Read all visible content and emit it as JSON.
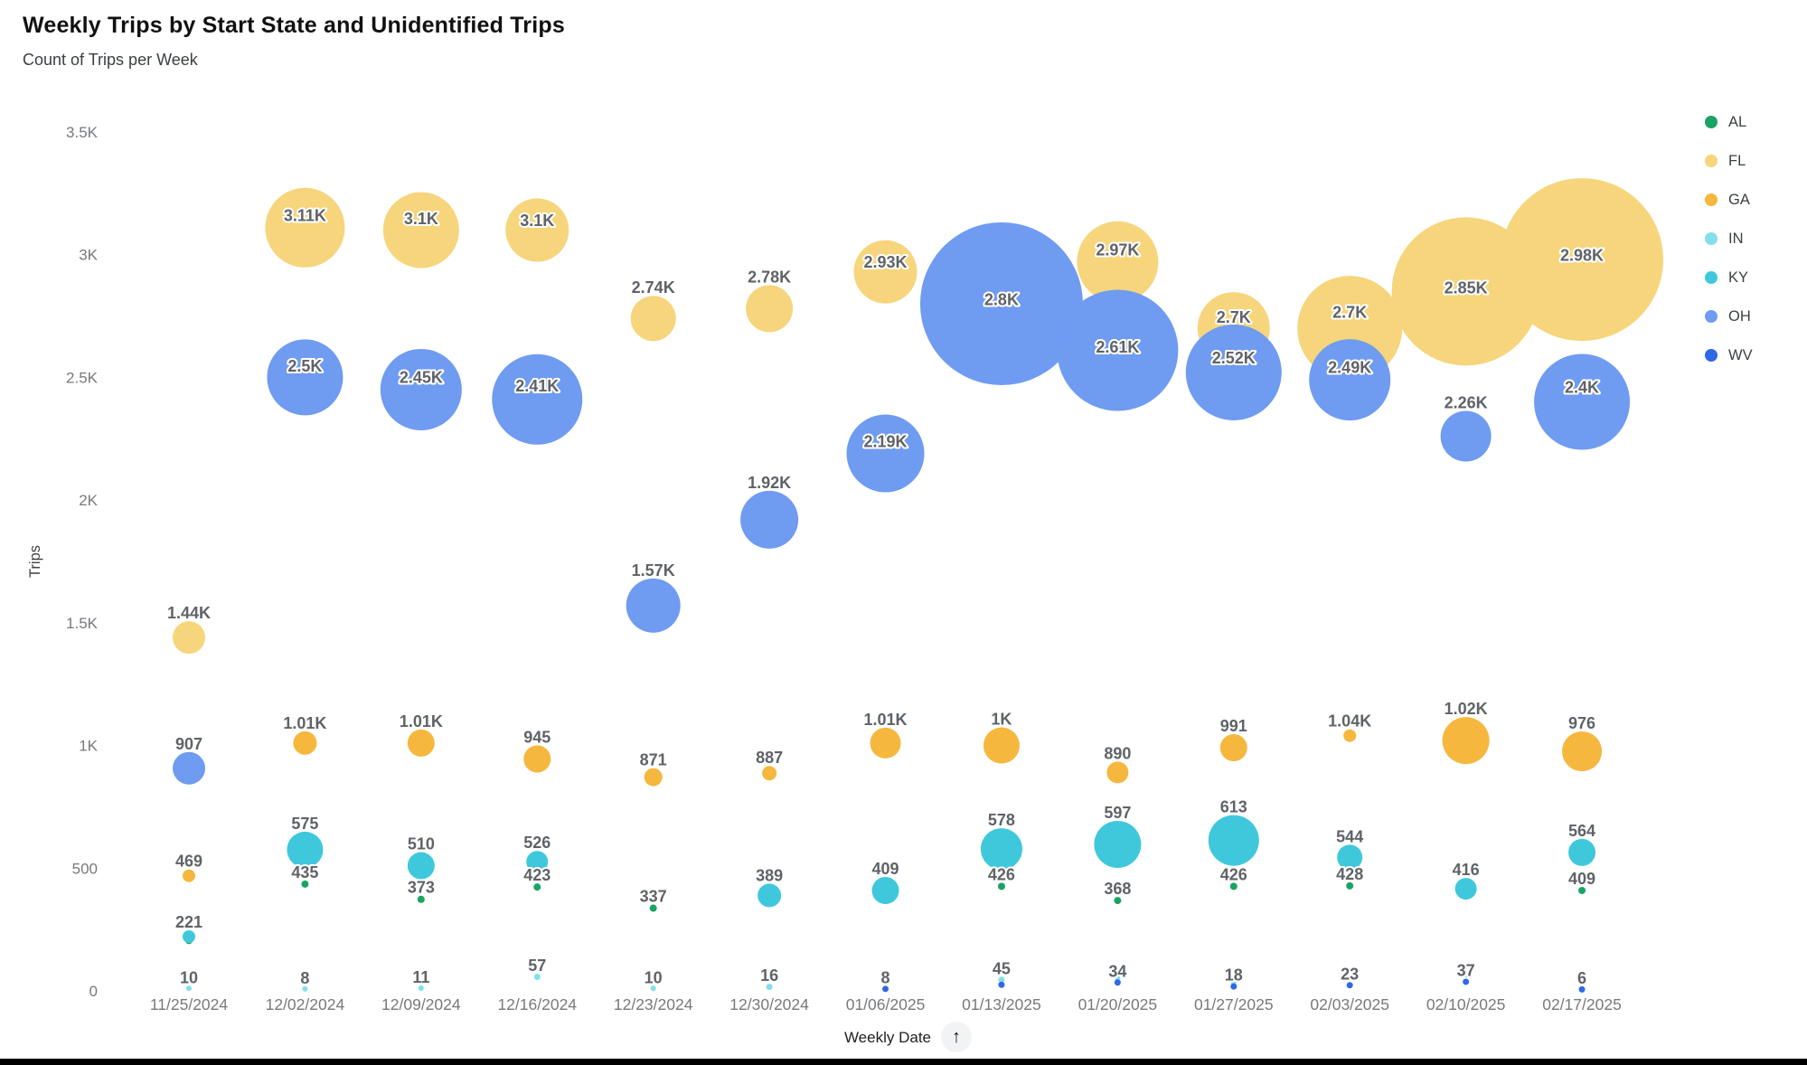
{
  "header": {
    "title": "Weekly Trips by Start State and Unidentified Trips",
    "subtitle": "Count of Trips per Week"
  },
  "axes": {
    "y_title": "Trips",
    "x_title": "Weekly Date",
    "sort_icon": "arrow-up-icon"
  },
  "chart_data": {
    "type": "scatter",
    "subtype": "bubble",
    "title": "Weekly Trips by Start State and Unidentified Trips",
    "xlabel": "Weekly Date",
    "ylabel": "Trips",
    "ylim": [
      0,
      3650
    ],
    "grid": false,
    "legend_position": "right",
    "y_ticks": [
      {
        "label": "0",
        "value": 0
      },
      {
        "label": "500",
        "value": 500
      },
      {
        "label": "1K",
        "value": 1000
      },
      {
        "label": "1.5K",
        "value": 1500
      },
      {
        "label": "2K",
        "value": 2000
      },
      {
        "label": "2.5K",
        "value": 2500
      },
      {
        "label": "3K",
        "value": 3000
      },
      {
        "label": "3.5K",
        "value": 3500
      }
    ],
    "categories": [
      "11/25/2024",
      "12/02/2024",
      "12/09/2024",
      "12/16/2024",
      "12/23/2024",
      "12/30/2024",
      "01/06/2025",
      "01/13/2025",
      "01/20/2025",
      "01/27/2025",
      "02/03/2025",
      "02/10/2025",
      "02/17/2025"
    ],
    "series": [
      {
        "name": "AL",
        "color": "#19A463",
        "points": [
          {
            "week": 0,
            "value": 205,
            "label": "",
            "r": 4
          },
          {
            "week": 1,
            "value": 435,
            "label": "435",
            "r": 4
          },
          {
            "week": 2,
            "value": 373,
            "label": "373",
            "r": 4
          },
          {
            "week": 3,
            "value": 423,
            "label": "423",
            "r": 4
          },
          {
            "week": 4,
            "value": 337,
            "label": "337",
            "r": 4
          },
          {
            "week": 6,
            "value": 388,
            "label": "",
            "r": 4
          },
          {
            "week": 7,
            "value": 426,
            "label": "426",
            "r": 4
          },
          {
            "week": 8,
            "value": 368,
            "label": "368",
            "r": 4
          },
          {
            "week": 9,
            "value": 426,
            "label": "426",
            "r": 4
          },
          {
            "week": 10,
            "value": 428,
            "label": "428",
            "r": 4
          },
          {
            "week": 11,
            "value": 390,
            "label": "",
            "r": 4
          },
          {
            "week": 12,
            "value": 409,
            "label": "409",
            "r": 4
          }
        ]
      },
      {
        "name": "FL",
        "color": "#F6D57C",
        "points": [
          {
            "week": 0,
            "value": 1440,
            "label": "1.44K",
            "r": 18
          },
          {
            "week": 1,
            "value": 3110,
            "label": "3.11K",
            "r": 44
          },
          {
            "week": 2,
            "value": 3100,
            "label": "3.1K",
            "r": 42
          },
          {
            "week": 3,
            "value": 3100,
            "label": "3.1K",
            "r": 35
          },
          {
            "week": 4,
            "value": 2740,
            "label": "2.74K",
            "r": 25
          },
          {
            "week": 5,
            "value": 2780,
            "label": "2.78K",
            "r": 26
          },
          {
            "week": 6,
            "value": 2930,
            "label": "2.93K",
            "r": 35
          },
          {
            "week": 8,
            "value": 2970,
            "label": "2.97K",
            "r": 45
          },
          {
            "week": 9,
            "value": 2700,
            "label": "2.7K",
            "r": 40
          },
          {
            "week": 10,
            "value": 2700,
            "label": "2.7K",
            "r": 58
          },
          {
            "week": 11,
            "value": 2850,
            "label": "2.85K",
            "r": 82
          },
          {
            "week": 12,
            "value": 2980,
            "label": "2.98K",
            "r": 90
          }
        ]
      },
      {
        "name": "GA",
        "color": "#F5B73D",
        "points": [
          {
            "week": 0,
            "value": 469,
            "label": "469",
            "r": 7
          },
          {
            "week": 1,
            "value": 1010,
            "label": "1.01K",
            "r": 13
          },
          {
            "week": 2,
            "value": 1010,
            "label": "1.01K",
            "r": 15
          },
          {
            "week": 3,
            "value": 945,
            "label": "945",
            "r": 15
          },
          {
            "week": 4,
            "value": 871,
            "label": "871",
            "r": 10
          },
          {
            "week": 5,
            "value": 887,
            "label": "887",
            "r": 8
          },
          {
            "week": 6,
            "value": 1010,
            "label": "1.01K",
            "r": 17
          },
          {
            "week": 7,
            "value": 1000,
            "label": "1K",
            "r": 20
          },
          {
            "week": 8,
            "value": 890,
            "label": "890",
            "r": 12
          },
          {
            "week": 9,
            "value": 991,
            "label": "991",
            "r": 15
          },
          {
            "week": 10,
            "value": 1040,
            "label": "1.04K",
            "r": 7
          },
          {
            "week": 11,
            "value": 1020,
            "label": "1.02K",
            "r": 26
          },
          {
            "week": 12,
            "value": 976,
            "label": "976",
            "r": 22
          }
        ]
      },
      {
        "name": "IN",
        "color": "#83DFEC",
        "points": [
          {
            "week": 0,
            "value": 10,
            "label": "10",
            "r": 3
          },
          {
            "week": 1,
            "value": 8,
            "label": "8",
            "r": 3
          },
          {
            "week": 2,
            "value": 11,
            "label": "11",
            "r": 3
          },
          {
            "week": 3,
            "value": 57,
            "label": "57",
            "r": 3.5
          },
          {
            "week": 4,
            "value": 10,
            "label": "10",
            "r": 3
          },
          {
            "week": 5,
            "value": 16,
            "label": "16",
            "r": 3.5
          },
          {
            "week": 7,
            "value": 45,
            "label": "45",
            "r": 3.5
          },
          {
            "week": 8,
            "value": 50,
            "label": "",
            "r": 3
          },
          {
            "week": 9,
            "value": 35,
            "label": "",
            "r": 3
          },
          {
            "week": 11,
            "value": 65,
            "label": "",
            "r": 3
          },
          {
            "week": 12,
            "value": 60,
            "label": "",
            "r": 3
          }
        ]
      },
      {
        "name": "KY",
        "color": "#3FC8DB",
        "points": [
          {
            "week": 0,
            "value": 221,
            "label": "221",
            "r": 7
          },
          {
            "week": 1,
            "value": 575,
            "label": "575",
            "r": 20
          },
          {
            "week": 2,
            "value": 510,
            "label": "510",
            "r": 15
          },
          {
            "week": 3,
            "value": 526,
            "label": "526",
            "r": 12
          },
          {
            "week": 5,
            "value": 389,
            "label": "389",
            "r": 13
          },
          {
            "week": 6,
            "value": 409,
            "label": "409",
            "r": 15
          },
          {
            "week": 7,
            "value": 578,
            "label": "578",
            "r": 23
          },
          {
            "week": 8,
            "value": 597,
            "label": "597",
            "r": 26
          },
          {
            "week": 9,
            "value": 613,
            "label": "613",
            "r": 28
          },
          {
            "week": 10,
            "value": 544,
            "label": "544",
            "r": 14
          },
          {
            "week": 11,
            "value": 416,
            "label": "416",
            "r": 12
          },
          {
            "week": 12,
            "value": 564,
            "label": "564",
            "r": 15
          }
        ]
      },
      {
        "name": "OH",
        "color": "#6F9BF1",
        "points": [
          {
            "week": 0,
            "value": 907,
            "label": "907",
            "r": 18
          },
          {
            "week": 1,
            "value": 2500,
            "label": "2.5K",
            "r": 42
          },
          {
            "week": 2,
            "value": 2450,
            "label": "2.45K",
            "r": 45
          },
          {
            "week": 3,
            "value": 2410,
            "label": "2.41K",
            "r": 50
          },
          {
            "week": 4,
            "value": 1570,
            "label": "1.57K",
            "r": 30
          },
          {
            "week": 5,
            "value": 1920,
            "label": "1.92K",
            "r": 32
          },
          {
            "week": 6,
            "value": 2190,
            "label": "2.19K",
            "r": 43
          },
          {
            "week": 7,
            "value": 2800,
            "label": "2.8K",
            "r": 90
          },
          {
            "week": 8,
            "value": 2610,
            "label": "2.61K",
            "r": 67
          },
          {
            "week": 9,
            "value": 2520,
            "label": "2.52K",
            "r": 53
          },
          {
            "week": 10,
            "value": 2490,
            "label": "2.49K",
            "r": 45
          },
          {
            "week": 11,
            "value": 2260,
            "label": "2.26K",
            "r": 28
          },
          {
            "week": 12,
            "value": 2400,
            "label": "2.4K",
            "r": 53
          }
        ]
      },
      {
        "name": "WV",
        "color": "#2E68E8",
        "points": [
          {
            "week": 6,
            "value": 8,
            "label": "8",
            "r": 3.5
          },
          {
            "week": 7,
            "value": 25,
            "label": "",
            "r": 3.5
          },
          {
            "week": 8,
            "value": 34,
            "label": "34",
            "r": 3.5
          },
          {
            "week": 9,
            "value": 18,
            "label": "18",
            "r": 3.5
          },
          {
            "week": 10,
            "value": 23,
            "label": "23",
            "r": 3.5
          },
          {
            "week": 11,
            "value": 37,
            "label": "37",
            "r": 3.5
          },
          {
            "week": 12,
            "value": 6,
            "label": "6",
            "r": 3.5
          }
        ]
      }
    ]
  }
}
